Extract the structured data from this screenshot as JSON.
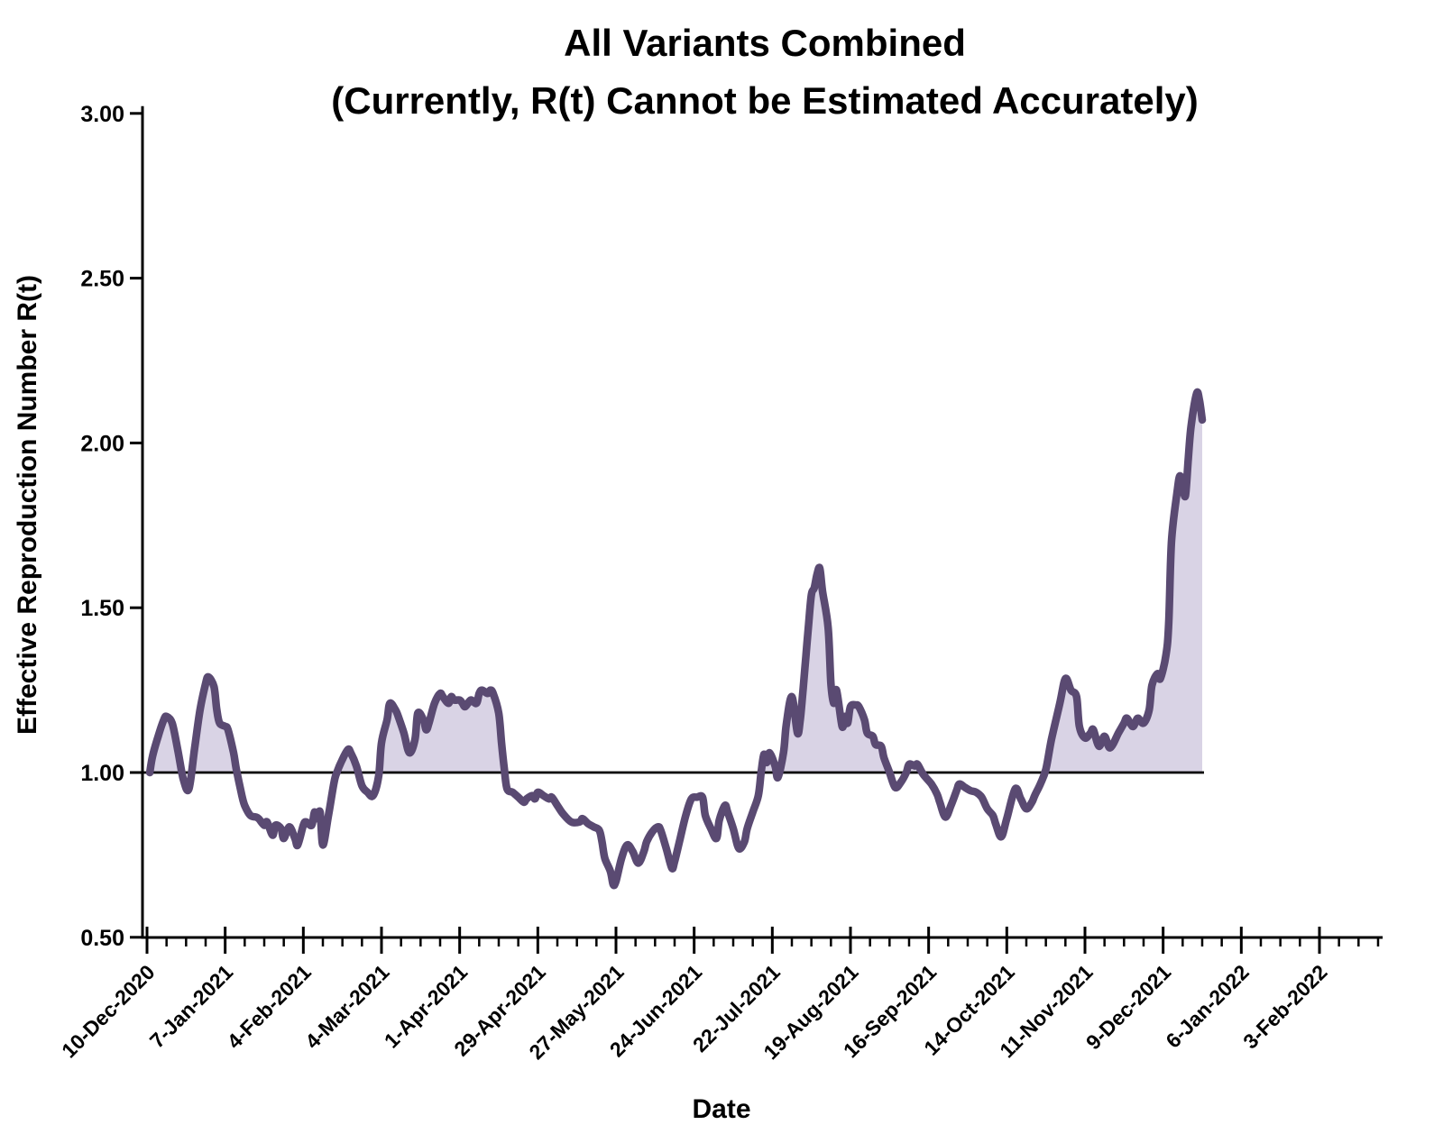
{
  "chart_data": {
    "type": "area",
    "title_line1": "All Variants Combined",
    "title_line2": "(Currently, R(t) Cannot be Estimated Accurately)",
    "xlabel": "Date",
    "ylabel": "Effective Reproduction Number R(t)",
    "y_min": 0.5,
    "y_max": 3.0,
    "y_step": 0.5,
    "baseline": 1.0,
    "grid": "off",
    "legend": "none",
    "start_date": "10-Dec-2020",
    "x_tick_labels": [
      "10-Dec-2020",
      "7-Jan-2021",
      "4-Feb-2021",
      "4-Mar-2021",
      "1-Apr-2021",
      "29-Apr-2021",
      "27-May-2021",
      "24-Jun-2021",
      "22-Jul-2021",
      "19-Aug-2021",
      "16-Sep-2021",
      "14-Oct-2021",
      "11-Nov-2021",
      "9-Dec-2021",
      "6-Jan-2022",
      "3-Feb-2022"
    ],
    "x_major_step_days": 28,
    "x_minor_step_days": 7,
    "x_axis_span_days": 442,
    "colors": {
      "line": "#5a4a72",
      "fill": "#d9d3e5",
      "axis": "#000000",
      "text": "#000000"
    },
    "series": [
      {
        "name": "R(t)",
        "points": [
          [
            1,
            1.0
          ],
          [
            2,
            1.05
          ],
          [
            4,
            1.11
          ],
          [
            6,
            1.16
          ],
          [
            7,
            1.17
          ],
          [
            9,
            1.15
          ],
          [
            11,
            1.07
          ],
          [
            13,
            0.98
          ],
          [
            15,
            0.95
          ],
          [
            17,
            1.07
          ],
          [
            19,
            1.19
          ],
          [
            21,
            1.27
          ],
          [
            22,
            1.29
          ],
          [
            24,
            1.26
          ],
          [
            25,
            1.19
          ],
          [
            26,
            1.15
          ],
          [
            28,
            1.14
          ],
          [
            29,
            1.13
          ],
          [
            31,
            1.06
          ],
          [
            32,
            1.01
          ],
          [
            34,
            0.93
          ],
          [
            35,
            0.9
          ],
          [
            37,
            0.87
          ],
          [
            39,
            0.865
          ],
          [
            40,
            0.86
          ],
          [
            42,
            0.84
          ],
          [
            43,
            0.85
          ],
          [
            45,
            0.81
          ],
          [
            46,
            0.84
          ],
          [
            48,
            0.83
          ],
          [
            49,
            0.8
          ],
          [
            51,
            0.835
          ],
          [
            53,
            0.8
          ],
          [
            54,
            0.78
          ],
          [
            56,
            0.84
          ],
          [
            57,
            0.85
          ],
          [
            59,
            0.84
          ],
          [
            60,
            0.88
          ],
          [
            61,
            0.86
          ],
          [
            62,
            0.88
          ],
          [
            63,
            0.78
          ],
          [
            65,
            0.87
          ],
          [
            67,
            0.97
          ],
          [
            68,
            1.0
          ],
          [
            70,
            1.04
          ],
          [
            72,
            1.07
          ],
          [
            73,
            1.06
          ],
          [
            75,
            1.02
          ],
          [
            77,
            0.96
          ],
          [
            79,
            0.94
          ],
          [
            81,
            0.93
          ],
          [
            83,
            0.99
          ],
          [
            84,
            1.09
          ],
          [
            86,
            1.16
          ],
          [
            87,
            1.21
          ],
          [
            89,
            1.19
          ],
          [
            90,
            1.17
          ],
          [
            92,
            1.12
          ],
          [
            94,
            1.06
          ],
          [
            96,
            1.1
          ],
          [
            97,
            1.18
          ],
          [
            99,
            1.16
          ],
          [
            100,
            1.13
          ],
          [
            101,
            1.15
          ],
          [
            103,
            1.21
          ],
          [
            105,
            1.24
          ],
          [
            106,
            1.23
          ],
          [
            108,
            1.21
          ],
          [
            109,
            1.23
          ],
          [
            110,
            1.22
          ],
          [
            112,
            1.22
          ],
          [
            113,
            1.21
          ],
          [
            114,
            1.2
          ],
          [
            116,
            1.22
          ],
          [
            118,
            1.21
          ],
          [
            119,
            1.24
          ],
          [
            120,
            1.25
          ],
          [
            122,
            1.24
          ],
          [
            123,
            1.25
          ],
          [
            124,
            1.24
          ],
          [
            126,
            1.18
          ],
          [
            127,
            1.09
          ],
          [
            128,
            1.01
          ],
          [
            129,
            0.95
          ],
          [
            131,
            0.94
          ],
          [
            133,
            0.925
          ],
          [
            135,
            0.91
          ],
          [
            136,
            0.92
          ],
          [
            138,
            0.93
          ],
          [
            139,
            0.92
          ],
          [
            140,
            0.94
          ],
          [
            142,
            0.93
          ],
          [
            144,
            0.92
          ],
          [
            145,
            0.925
          ],
          [
            147,
            0.9
          ],
          [
            149,
            0.875
          ],
          [
            152,
            0.85
          ],
          [
            155,
            0.85
          ],
          [
            156,
            0.86
          ],
          [
            158,
            0.845
          ],
          [
            160,
            0.835
          ],
          [
            162,
            0.825
          ],
          [
            163,
            0.79
          ],
          [
            164,
            0.74
          ],
          [
            166,
            0.7
          ],
          [
            167,
            0.66
          ],
          [
            168,
            0.67
          ],
          [
            170,
            0.74
          ],
          [
            172,
            0.78
          ],
          [
            174,
            0.76
          ],
          [
            176,
            0.725
          ],
          [
            178,
            0.76
          ],
          [
            179,
            0.79
          ],
          [
            181,
            0.82
          ],
          [
            183,
            0.835
          ],
          [
            184,
            0.825
          ],
          [
            186,
            0.77
          ],
          [
            188,
            0.71
          ],
          [
            189,
            0.73
          ],
          [
            191,
            0.8
          ],
          [
            193,
            0.87
          ],
          [
            195,
            0.92
          ],
          [
            197,
            0.925
          ],
          [
            199,
            0.925
          ],
          [
            200,
            0.87
          ],
          [
            202,
            0.83
          ],
          [
            204,
            0.8
          ],
          [
            205,
            0.855
          ],
          [
            207,
            0.9
          ],
          [
            208,
            0.88
          ],
          [
            210,
            0.83
          ],
          [
            212,
            0.77
          ],
          [
            214,
            0.79
          ],
          [
            215,
            0.83
          ],
          [
            217,
            0.88
          ],
          [
            219,
            0.93
          ],
          [
            220,
            1.0
          ],
          [
            221,
            1.055
          ],
          [
            222,
            1.03
          ],
          [
            223,
            1.06
          ],
          [
            225,
            1.02
          ],
          [
            226,
            0.985
          ],
          [
            228,
            1.06
          ],
          [
            229,
            1.145
          ],
          [
            231,
            1.23
          ],
          [
            233,
            1.12
          ],
          [
            234,
            1.16
          ],
          [
            235,
            1.25
          ],
          [
            236,
            1.35
          ],
          [
            237,
            1.45
          ],
          [
            238,
            1.54
          ],
          [
            239,
            1.56
          ],
          [
            240,
            1.6
          ],
          [
            241,
            1.62
          ],
          [
            242,
            1.55
          ],
          [
            244,
            1.44
          ],
          [
            245,
            1.27
          ],
          [
            246,
            1.21
          ],
          [
            247,
            1.25
          ],
          [
            249,
            1.14
          ],
          [
            250,
            1.17
          ],
          [
            251,
            1.15
          ],
          [
            252,
            1.2
          ],
          [
            254,
            1.205
          ],
          [
            255,
            1.2
          ],
          [
            257,
            1.16
          ],
          [
            258,
            1.12
          ],
          [
            260,
            1.11
          ],
          [
            261,
            1.085
          ],
          [
            263,
            1.08
          ],
          [
            264,
            1.045
          ],
          [
            266,
            1.0
          ],
          [
            268,
            0.955
          ],
          [
            270,
            0.97
          ],
          [
            272,
            1.0
          ],
          [
            273,
            1.025
          ],
          [
            275,
            1.02
          ],
          [
            276,
            1.025
          ],
          [
            278,
            0.995
          ],
          [
            281,
            0.965
          ],
          [
            283,
            0.935
          ],
          [
            284,
            0.91
          ],
          [
            286,
            0.865
          ],
          [
            288,
            0.9
          ],
          [
            290,
            0.945
          ],
          [
            291,
            0.965
          ],
          [
            293,
            0.955
          ],
          [
            295,
            0.945
          ],
          [
            297,
            0.94
          ],
          [
            299,
            0.925
          ],
          [
            301,
            0.89
          ],
          [
            303,
            0.87
          ],
          [
            304,
            0.845
          ],
          [
            306,
            0.805
          ],
          [
            308,
            0.86
          ],
          [
            311,
            0.95
          ],
          [
            313,
            0.92
          ],
          [
            315,
            0.89
          ],
          [
            317,
            0.91
          ],
          [
            318,
            0.93
          ],
          [
            320,
            0.965
          ],
          [
            322,
            1.01
          ],
          [
            324,
            1.1
          ],
          [
            327,
            1.21
          ],
          [
            329,
            1.285
          ],
          [
            331,
            1.25
          ],
          [
            333,
            1.23
          ],
          [
            334,
            1.14
          ],
          [
            336,
            1.105
          ],
          [
            338,
            1.12
          ],
          [
            339,
            1.13
          ],
          [
            341,
            1.08
          ],
          [
            343,
            1.11
          ],
          [
            345,
            1.075
          ],
          [
            348,
            1.12
          ],
          [
            350,
            1.15
          ],
          [
            351,
            1.165
          ],
          [
            353,
            1.14
          ],
          [
            354,
            1.15
          ],
          [
            355,
            1.165
          ],
          [
            357,
            1.15
          ],
          [
            359,
            1.19
          ],
          [
            360,
            1.265
          ],
          [
            362,
            1.3
          ],
          [
            363,
            1.285
          ],
          [
            365,
            1.355
          ],
          [
            366,
            1.45
          ],
          [
            367,
            1.7
          ],
          [
            369,
            1.85
          ],
          [
            370,
            1.9
          ],
          [
            371,
            1.87
          ],
          [
            372,
            1.84
          ],
          [
            373,
            1.95
          ],
          [
            374,
            2.05
          ],
          [
            376,
            2.15
          ],
          [
            377,
            2.13
          ],
          [
            378,
            2.07
          ]
        ]
      }
    ]
  }
}
